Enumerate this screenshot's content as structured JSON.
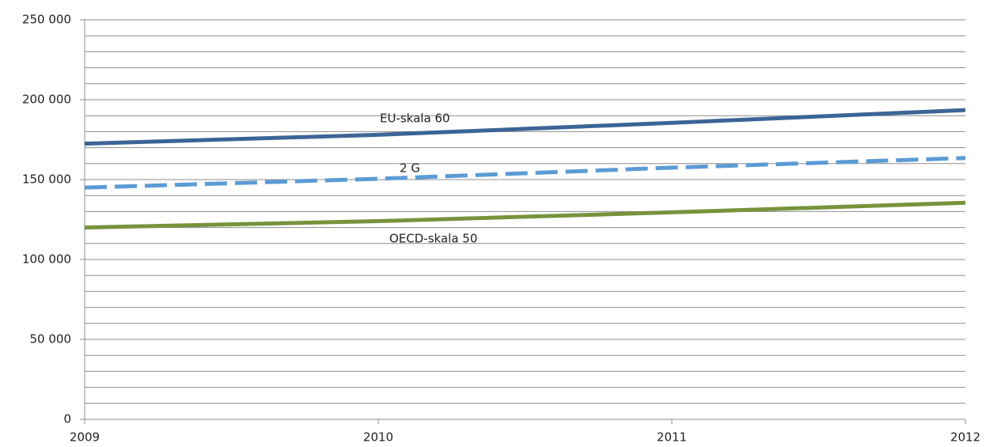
{
  "chart_data": {
    "type": "line",
    "x": [
      2009,
      2010,
      2011,
      2012
    ],
    "xlim": [
      2009,
      2012
    ],
    "xticks": [
      2009,
      2010,
      2011,
      2012
    ],
    "ylim": [
      0,
      250000
    ],
    "yticks": [
      {
        "value": 0,
        "label": "0"
      },
      {
        "value": 50000,
        "label": "50 000"
      },
      {
        "value": 100000,
        "label": "100 000"
      },
      {
        "value": 150000,
        "label": "150 000"
      },
      {
        "value": 200000,
        "label": "200 000"
      },
      {
        "value": 250000,
        "label": "250 000"
      }
    ],
    "ygrid": [
      10000,
      20000,
      30000,
      40000,
      50000,
      60000,
      70000,
      80000,
      90000,
      100000,
      110000,
      120000,
      130000,
      140000,
      150000,
      160000,
      170000,
      180000,
      190000,
      200000,
      210000,
      220000,
      230000,
      240000,
      250000
    ],
    "series": [
      {
        "name": "EU-skala 60",
        "color": "#3c6596",
        "dashed": false,
        "values": [
          172500,
          178000,
          185500,
          193500
        ]
      },
      {
        "name": "2 G",
        "color": "#5b9bd5",
        "dashed": true,
        "values": [
          145000,
          150500,
          157500,
          163500
        ]
      },
      {
        "name": "OECD-skala 50",
        "color": "#77933c",
        "dashed": false,
        "values": [
          120000,
          124000,
          129500,
          135500
        ]
      }
    ]
  }
}
